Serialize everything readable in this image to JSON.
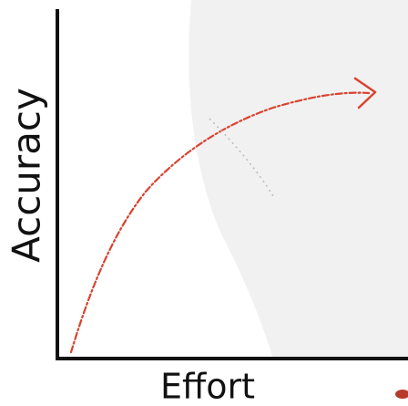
{
  "axes": {
    "y_label": "Accuracy",
    "x_label": "Effort"
  }
}
